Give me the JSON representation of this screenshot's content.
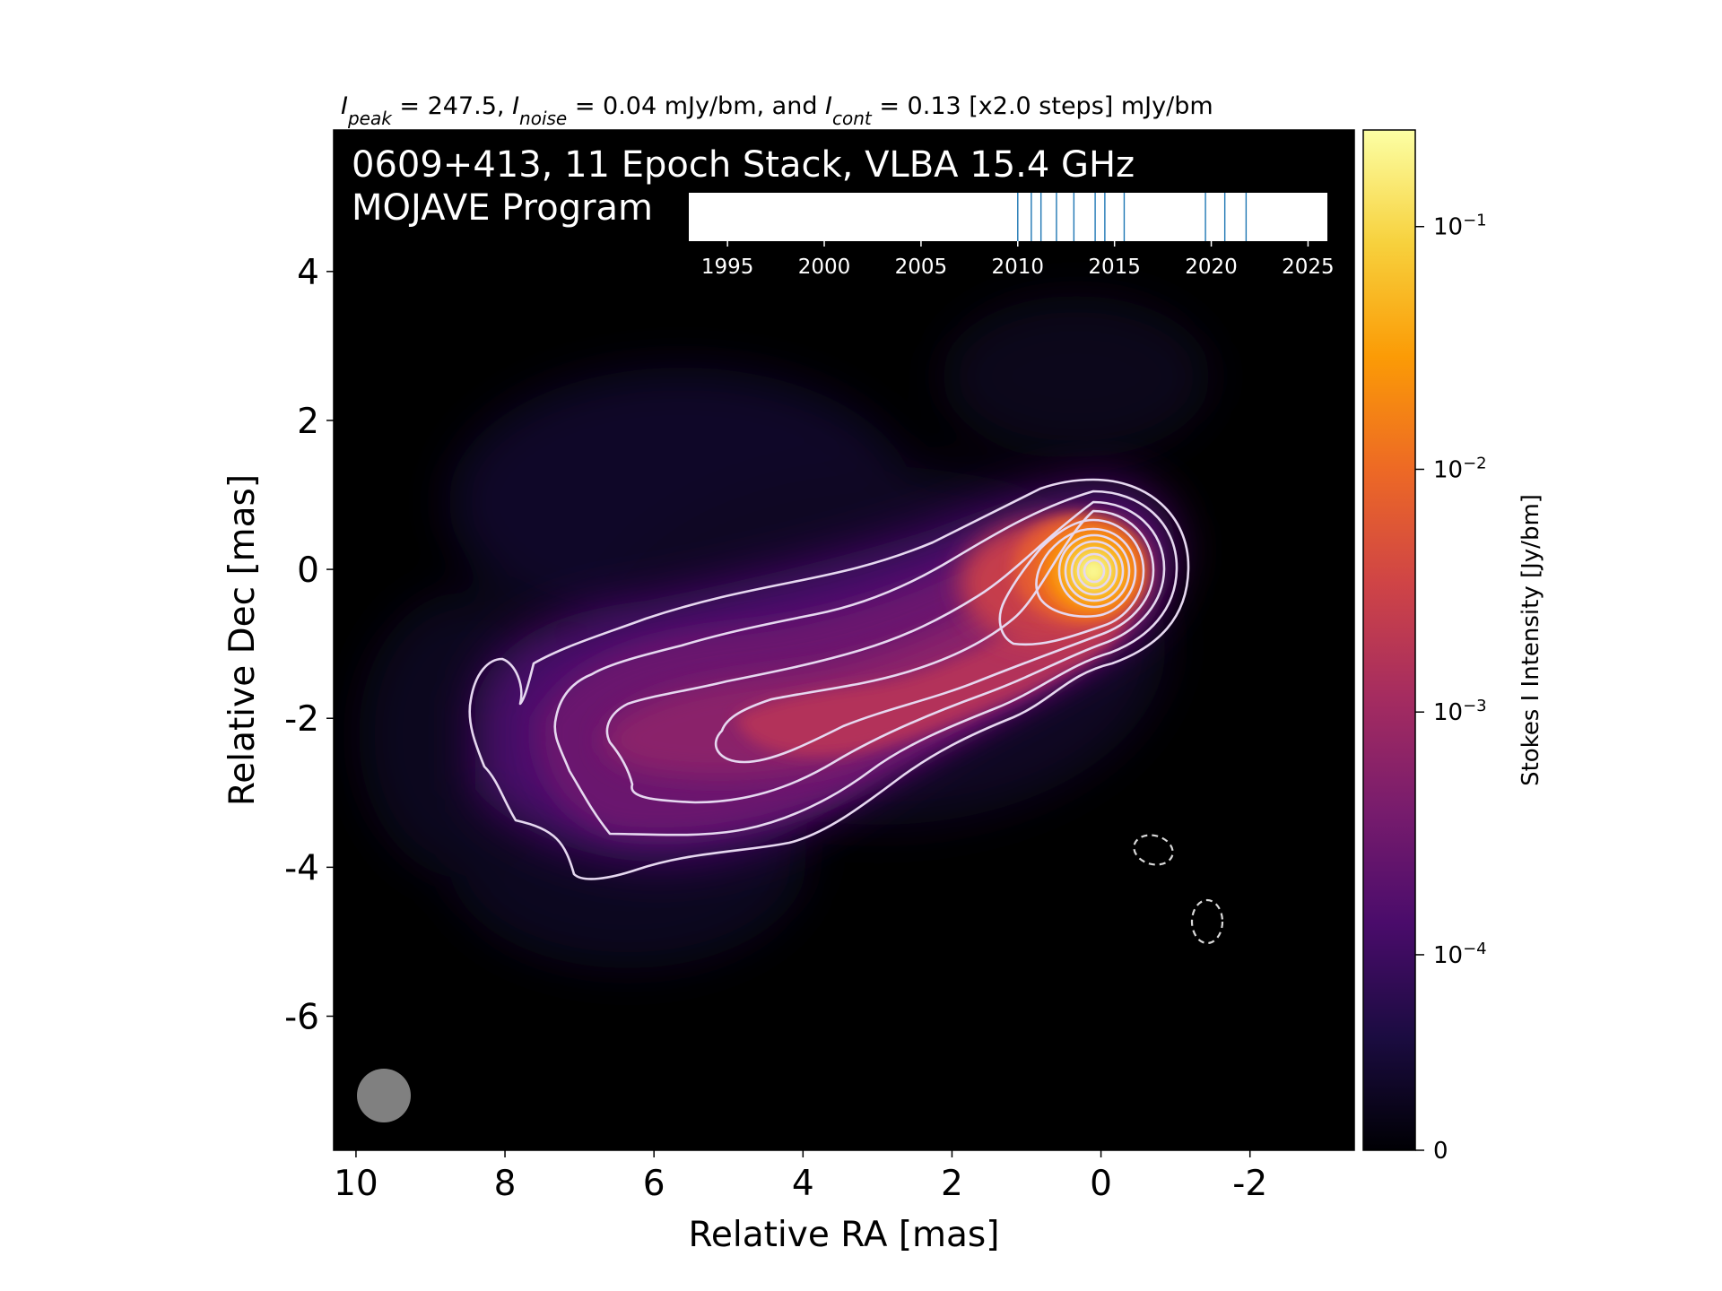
{
  "header": {
    "stats_parts": [
      {
        "text": "I",
        "style": "italic",
        "sub": false
      },
      {
        "text": "peak",
        "style": "italic",
        "sub": true
      },
      {
        "text": " = 247.5, ",
        "style": "normal",
        "sub": false
      },
      {
        "text": "I",
        "style": "italic",
        "sub": false
      },
      {
        "text": "noise",
        "style": "italic",
        "sub": true
      },
      {
        "text": " = 0.04 mJy/bm, and ",
        "style": "normal",
        "sub": false
      },
      {
        "text": "I",
        "style": "italic",
        "sub": false
      },
      {
        "text": "cont",
        "style": "italic",
        "sub": true
      },
      {
        "text": " = 0.13 [x2.0 steps] mJy/bm",
        "style": "normal",
        "sub": false
      }
    ]
  },
  "image": {
    "title_line1": "0609+413, 11 Epoch Stack, VLBA 15.4 GHz",
    "title_line2": "MOJAVE Program",
    "background_color": "#000000",
    "contour_color": "#e6d8f0",
    "negative_contour_color": "#d9d9d9",
    "beam_color": "#808080"
  },
  "chart_data": {
    "type": "heatmap",
    "xlabel": "Relative RA [mas]",
    "ylabel": "Relative Dec [mas]",
    "xlim": [
      10.3,
      -3.4
    ],
    "ylim": [
      -7.8,
      5.9
    ],
    "x_ticks": [
      {
        "value": 10,
        "label": "10"
      },
      {
        "value": 8,
        "label": "8"
      },
      {
        "value": 6,
        "label": "6"
      },
      {
        "value": 4,
        "label": "4"
      },
      {
        "value": 2,
        "label": "2"
      },
      {
        "value": 0,
        "label": "0"
      },
      {
        "value": -2,
        "label": "-2"
      }
    ],
    "y_ticks": [
      {
        "value": 4,
        "label": "4"
      },
      {
        "value": 2,
        "label": "2"
      },
      {
        "value": 0,
        "label": "0"
      },
      {
        "value": -2,
        "label": "-2"
      },
      {
        "value": -4,
        "label": "-4"
      },
      {
        "value": -6,
        "label": "-6"
      }
    ],
    "peak_position": [
      0.0,
      0.0
    ],
    "beam": {
      "x": 9.5,
      "y": -7.1,
      "major_mas": 0.72,
      "minor_mas": 0.72
    },
    "colorbar": {
      "label": "Stokes I Intensity [Jy/bm]",
      "colormap": "inferno",
      "scale": "log",
      "colors": [
        "#000004",
        "#1b0c41",
        "#4a0c6b",
        "#781c6d",
        "#a52c60",
        "#cf4446",
        "#ed6925",
        "#fb9b06",
        "#f7d13d",
        "#fcffa4"
      ],
      "ticks": [
        {
          "value": 0,
          "label": "0"
        },
        {
          "value": 0.0001,
          "label": "10",
          "exp": "−4"
        },
        {
          "value": 0.001,
          "label": "10",
          "exp": "−3"
        },
        {
          "value": 0.01,
          "label": "10",
          "exp": "−2"
        },
        {
          "value": 0.1,
          "label": "10",
          "exp": "−1"
        }
      ]
    },
    "epoch_timeline": {
      "xlim": [
        1993,
        2026
      ],
      "tick_labels": [
        "1995",
        "2000",
        "2005",
        "2010",
        "2015",
        "2020",
        "2025"
      ],
      "tick_values": [
        1995,
        2000,
        2005,
        2010,
        2015,
        2020,
        2025
      ],
      "epochs": [
        2010.0,
        2010.7,
        2011.2,
        2012.0,
        2012.9,
        2014.0,
        2014.5,
        2015.5,
        2019.7,
        2020.7,
        2021.8
      ],
      "line_color": "#1f77b4"
    },
    "contours_mJy_per_bm": [
      0.13,
      0.26,
      0.52,
      1.04,
      2.08,
      4.16,
      8.32,
      16.64,
      33.28,
      66.56,
      133.12
    ],
    "negative_contours_mJy_per_bm": [
      -0.13
    ]
  }
}
